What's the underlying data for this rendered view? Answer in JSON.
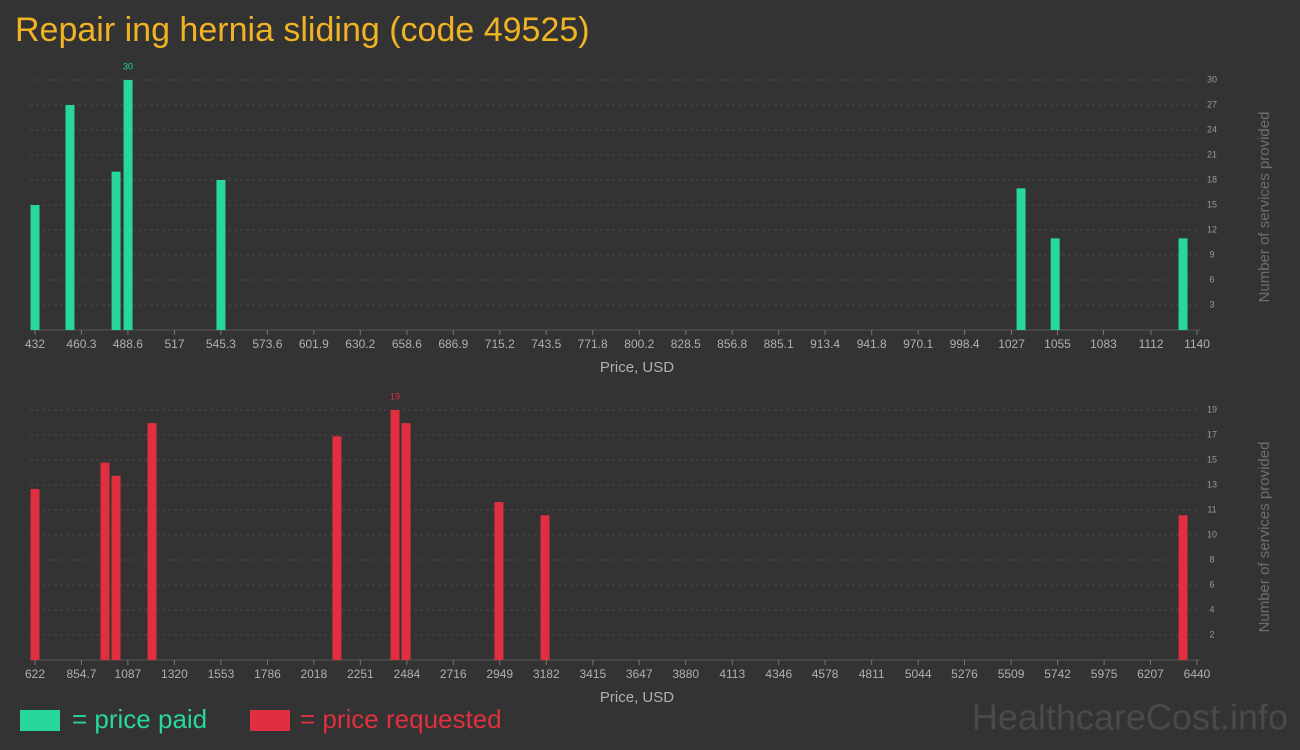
{
  "title": "Repair ing hernia sliding (code 49525)",
  "watermark": "HealthcareCost.info",
  "chart_data": [
    {
      "type": "bar",
      "x_label": "Price, USD",
      "y_label": "Number of services provided",
      "grid": true,
      "x": [
        432,
        453.3,
        481.4,
        488.7,
        545.3,
        1032.8,
        1053.6,
        1131.5
      ],
      "series": [
        {
          "name": "= price paid",
          "color": "#27d89a",
          "values": [
            15,
            27,
            19,
            30,
            18,
            17,
            11,
            11
          ]
        }
      ],
      "xlim": [
        432,
        1140
      ],
      "xticks": [
        432,
        460.3,
        488.6,
        517,
        545.3,
        573.6,
        601.9,
        630.2,
        658.6,
        686.9,
        715.2,
        743.5,
        771.8,
        800.2,
        828.5,
        856.8,
        885.1,
        913.4,
        941.8,
        970.1,
        998.4,
        1027,
        1055,
        1083,
        1112,
        1140
      ],
      "ylim": [
        0,
        30
      ],
      "yticks": [
        3,
        6,
        9,
        12,
        15,
        18,
        21,
        24,
        27,
        30
      ]
    },
    {
      "type": "bar",
      "x_label": "Price, USD",
      "y_label": "Number of services provided",
      "grid": true,
      "x": [
        622,
        972.5,
        1027.6,
        1207.9,
        2134,
        2424.6,
        2479.6,
        2945,
        3175.7,
        6370
      ],
      "series": [
        {
          "name": "= price requested",
          "color": "#e0303f",
          "values": [
            13,
            15,
            14,
            18,
            17,
            19,
            18,
            12,
            11,
            11
          ]
        }
      ],
      "xlim": [
        622,
        6440
      ],
      "xticks": [
        622,
        854.7,
        1087,
        1320,
        1553,
        1786,
        2018,
        2251,
        2484,
        2716,
        2949,
        3182,
        3415,
        3647,
        3880,
        4113,
        4346,
        4578,
        4811,
        5044,
        5276,
        5509,
        5742,
        5975,
        6207,
        6440
      ],
      "ylim": [
        0,
        19
      ],
      "yticks": [
        {
          "value": 1.9,
          "label": "2"
        },
        {
          "value": 3.8,
          "label": "4"
        },
        {
          "value": 5.7,
          "label": "6"
        },
        {
          "value": 7.6,
          "label": "8"
        },
        {
          "value": 9.5,
          "label": "10"
        },
        {
          "value": 11.4,
          "label": "11"
        },
        {
          "value": 13.3,
          "label": "13"
        },
        {
          "value": 15.2,
          "label": "15"
        },
        {
          "value": 17.1,
          "label": "17"
        },
        19
      ]
    }
  ]
}
